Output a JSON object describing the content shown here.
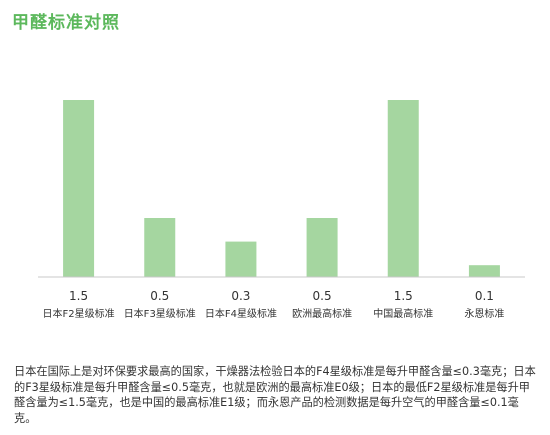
{
  "page": {
    "title": "甲醛标准对照",
    "description": "日本在国际上是对环保要求最高的国家，干燥器法检验日本的F4星级标准是每升甲醛含量≤0.3毫克；日本的F3星级标准是每升甲醛含量≤0.5毫克，也就是欧洲的最高标准E0级；日本的最低F2星级标准是每升甲醛含量为≤1.5毫克，也是中国的最高标准E1级；而永恩产品的检测数据是每升空气的甲醛含量≤0.1毫克。"
  },
  "chart_data": {
    "type": "bar",
    "title": "",
    "xlabel": "",
    "ylabel": "",
    "categories": [
      "日本F2星级标准",
      "日本F3星级标准",
      "日本F4星级标准",
      "欧洲最高标准",
      "中国最高标准",
      "永恩标准"
    ],
    "values": [
      1.5,
      0.5,
      0.3,
      0.5,
      1.5,
      0.1
    ],
    "value_labels": [
      "1.5",
      "0.5",
      "0.3",
      "0.5",
      "1.5",
      "0.1"
    ],
    "ylim": [
      0,
      1.5
    ],
    "grid": false,
    "bar_color": "#a5d6a0",
    "baseline_color": "#c8c8c8",
    "title_color": "#5cb85c"
  }
}
